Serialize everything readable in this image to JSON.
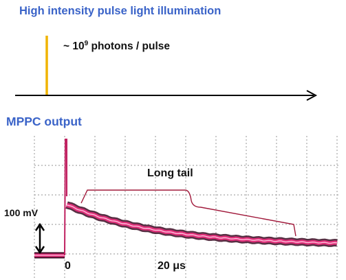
{
  "illumination": {
    "heading": "High intensity pulse light illumination",
    "photons_prefix": "~ 10",
    "photons_exponent": "9",
    "photons_suffix": " photons / pulse",
    "pulse_color": "#f0b400",
    "axis_color": "#000000"
  },
  "output": {
    "heading": "MPPC output",
    "tail_label": "Long tail",
    "scale_label": "100 mV",
    "zero_label": "0",
    "time_label": "20 μs",
    "trace_color": "#e0307a",
    "trace_edge_color": "#3a0a22",
    "brace_color": "#a0183a",
    "grid_color": "#a8a8a8",
    "heading_color": "#3a63c8"
  }
}
